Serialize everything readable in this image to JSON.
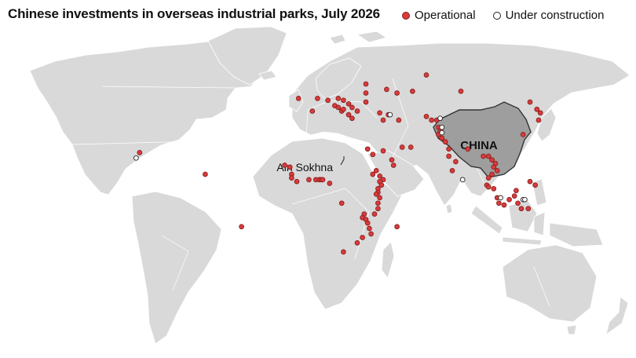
{
  "title": "Chinese investments in overseas industrial parks, July 2026",
  "legend": {
    "operational": "Operational",
    "under_construction": "Under construction"
  },
  "colors": {
    "land": "#d9d9d9",
    "border": "#ffffff",
    "china": "#9e9e9e",
    "operational": "#d93b3b",
    "under_construction": "#ffffff"
  },
  "labels": {
    "china": "CHINA",
    "ain_sokhna": "Ain Sokhna"
  },
  "parks": {
    "operational": [
      [
        16,
        -6
      ],
      [
        -101,
        22
      ],
      [
        -63,
        10
      ],
      [
        -42,
        -19
      ],
      [
        -17,
        15
      ],
      [
        -14,
        14
      ],
      [
        -13,
        10
      ],
      [
        -13,
        8
      ],
      [
        -10,
        6
      ],
      [
        -3,
        7
      ],
      [
        1,
        7
      ],
      [
        3,
        7
      ],
      [
        4,
        7
      ],
      [
        5,
        7
      ],
      [
        9,
        5
      ],
      [
        34,
        10
      ],
      [
        36,
        12
      ],
      [
        38,
        9
      ],
      [
        40,
        7
      ],
      [
        38,
        6
      ],
      [
        39,
        4
      ],
      [
        37,
        2
      ],
      [
        37,
        0
      ],
      [
        36,
        -1
      ],
      [
        38,
        -3
      ],
      [
        37,
        -6
      ],
      [
        37,
        -9
      ],
      [
        35,
        -12
      ],
      [
        29,
        -12
      ],
      [
        28,
        -14
      ],
      [
        30,
        -15
      ],
      [
        31,
        -17
      ],
      [
        32,
        -20
      ],
      [
        33,
        -23
      ],
      [
        28,
        -25
      ],
      [
        25,
        -28
      ],
      [
        17,
        -33
      ],
      [
        48,
        -19
      ],
      [
        40,
        23
      ],
      [
        45,
        18
      ],
      [
        51,
        25
      ],
      [
        56,
        25
      ],
      [
        46,
        15
      ],
      [
        34,
        21
      ],
      [
        31,
        24
      ],
      [
        -9,
        52
      ],
      [
        2,
        52
      ],
      [
        -1,
        45
      ],
      [
        8,
        51
      ],
      [
        14,
        52
      ],
      [
        12,
        48
      ],
      [
        14,
        47
      ],
      [
        16,
        45
      ],
      [
        17,
        46
      ],
      [
        20,
        49
      ],
      [
        22,
        47
      ],
      [
        20,
        43
      ],
      [
        22,
        41
      ],
      [
        25,
        45
      ],
      [
        30,
        50
      ],
      [
        30,
        55
      ],
      [
        17,
        51
      ],
      [
        30,
        60
      ],
      [
        42,
        57
      ],
      [
        48,
        55
      ],
      [
        57,
        56
      ],
      [
        65,
        65
      ],
      [
        85,
        56
      ],
      [
        38,
        44
      ],
      [
        43,
        43
      ],
      [
        40,
        40
      ],
      [
        49,
        40
      ],
      [
        65,
        42
      ],
      [
        68,
        40
      ],
      [
        71,
        40
      ],
      [
        72,
        36
      ],
      [
        73,
        34
      ],
      [
        72,
        32
      ],
      [
        74,
        30
      ],
      [
        76,
        28
      ],
      [
        78,
        24
      ],
      [
        78,
        20
      ],
      [
        82,
        17
      ],
      [
        80,
        12
      ],
      [
        89,
        24
      ],
      [
        98,
        20
      ],
      [
        101,
        20
      ],
      [
        103,
        18
      ],
      [
        105,
        16
      ],
      [
        104,
        14
      ],
      [
        106,
        12
      ],
      [
        103,
        10
      ],
      [
        101,
        8
      ],
      [
        100,
        4
      ],
      [
        101,
        3
      ],
      [
        104,
        2
      ],
      [
        106,
        -3
      ],
      [
        107,
        -6
      ],
      [
        110,
        -7
      ],
      [
        113,
        -4
      ],
      [
        116,
        -2
      ],
      [
        117,
        1
      ],
      [
        118,
        -6
      ],
      [
        120,
        -9
      ],
      [
        124,
        -9
      ],
      [
        125,
        6
      ],
      [
        128,
        4
      ],
      [
        130,
        40
      ],
      [
        131,
        44
      ],
      [
        129,
        46
      ],
      [
        125,
        50
      ],
      [
        121,
        32
      ]
    ],
    "under_construction": [
      [
        -103,
        19
      ],
      [
        44,
        43
      ],
      [
        73,
        41
      ],
      [
        74,
        36
      ],
      [
        74,
        33
      ],
      [
        86,
        7
      ],
      [
        108,
        -3
      ],
      [
        121,
        -4
      ],
      [
        122,
        -4
      ]
    ]
  }
}
